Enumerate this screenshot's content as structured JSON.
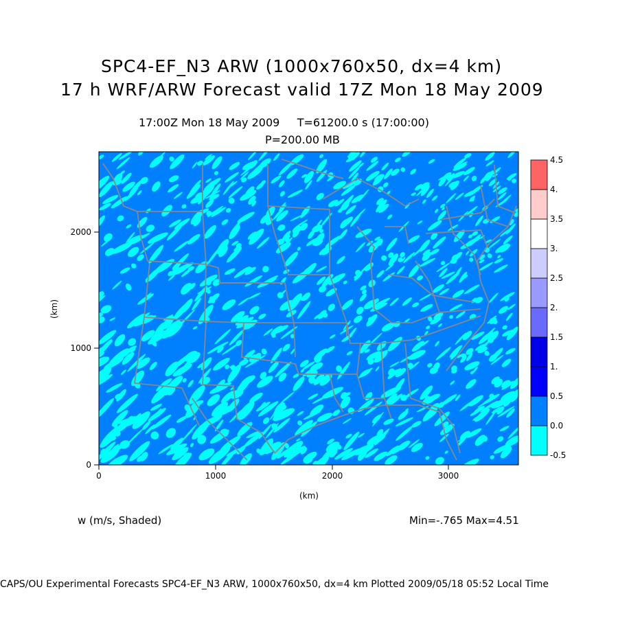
{
  "header": {
    "title_line1": "SPC4-EF_N3 ARW (1000x760x50, dx=4 km)",
    "title_line2": "17 h WRF/ARW Forecast valid 17Z Mon 18 May 2009",
    "time_line": "17:00Z Mon 18 May 2009     T=61200.0 s (17:00:00)",
    "level_line": "P=200.00 MB"
  },
  "axes": {
    "x_label": "(km)",
    "y_label": "(km)",
    "x_ticks": [
      "0",
      "1000",
      "2000",
      "3000"
    ],
    "y_ticks": [
      "0",
      "1000",
      "2000"
    ],
    "x_range_km": [
      0,
      3600
    ],
    "y_range_km": [
      0,
      2700
    ]
  },
  "colorbar": {
    "labels": [
      "-0.5",
      "0.0",
      "0.5",
      "1.",
      "1.5",
      "2.",
      "2.5",
      "3.",
      "3.5",
      "4.",
      "4.5"
    ],
    "colors": [
      "#00ffff",
      "#0080ff",
      "#0000ff",
      "#0000e8",
      "#6a6aff",
      "#9999ff",
      "#ccccff",
      "#ffffff",
      "#ffcccc",
      "#ff9999",
      "#ff6464"
    ]
  },
  "field": {
    "variable_label": "w (m/s, Shaded)",
    "minmax": "Min=-.765 Max=4.51",
    "background_color": "#0080ff",
    "streak_color": "#00ffff",
    "boundary_color": "#888888"
  },
  "footer": {
    "text": "CAPS/OU Experimental Forecasts  SPC4-EF_N3 ARW, 1000x760x50, dx=4 km  Plotted 2009/05/18 05:52 Local Time"
  }
}
